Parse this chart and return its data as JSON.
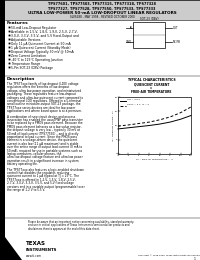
{
  "title_line1": "TPS77601, TPS77503, TPS77315, TPS77318, TPS77328",
  "title_line2": "TPS77327, TPS77528, TPS77550, TPS77533, TPS77333",
  "title_line3": "ULTRA LOW-POWER 50-mA LOW-DROPOUT LINEAR REGULATORS",
  "subtitle": "SLVS188 - MAY 1998 - REVISED OCTOBER 2000",
  "features": [
    "50-mA Low-Dropout Regulator",
    "Available in 1.5-V, 1.8-V, 1.9-V, 2.5-V, 2.7-V,",
    "3.0-V, 3.3-V, 3.5-V, and 5-V Fixed-Output and",
    "Adjustable Versions",
    "Only 11 μA Quiescent Current at 50-mA",
    "1 μA Quiescent Current (Standby Mode)",
    "Dropout Voltage Typically 30 mV @ 50mA",
    "Zero Current Limitation",
    "–40°C to 125°C Operating Junction",
    "Temperature Range",
    "5-Pin SOT-23 (DBV) Package"
  ],
  "pkg_label": "SOT-23 (DBV)",
  "desc1": "The TPS77xxx family of low-dropout (LDO) voltage regulators offers the benefits of low-dropout voltage, ultra low-power operation, and miniaturized packaging. These regulators feature low-dropout voltages and ultra-low quiescent current compared to conventional LDO regulators. Offered in a 5-terminal small outline miniature-output SOT-23 package, the TPS77xxx series devices are ideal for low-power applications and where board space is at a premium.",
  "desc2": "A combination of new circuit design and process innovation has enabled the usual PNP pass transistor to be replaced by a PMOS pass element. Because the PMOS pass element behaves as a low-value resistor, the dropout voltage is very low – typically 30 mV at 50 mA of load current (TPS77550) – and is directly proportional to load current. Since the PMOS pass element is a voltage-driven device, the quiescent current is also low (11 μA maximum) and is stable over the entire range of output load current (0 mA to 50 mA), required for use in portable systems such as laptop computers, cellular phones, the ultra-low-dropout voltage feature and ultra low power operation result in a significant increase in system battery operating life.",
  "desc3": "The TPS77xxx also features a logic-enabled shutdown control that disables the regulator, reducing quiescent current to 1 μA typical at TJ = 25°C. The TPS77xxx is offered in 1.2-V, 1.5-V, 1.8-V, 2.5-V, 2.7-V, 3.0-V, 3.3-V, 3.5-V, and 5-V fixed-voltage versions and in a variable-output (programmable) over the range of 1.2 V to 5.5 V.",
  "warning_text": "Please be aware that an important notice concerning availability, standard warranty, and use in critical applications of Texas Instruments semiconductor products and disclaimers thereto appears at the end of this data sheet.",
  "copyright": "Copyright © 1998-2000, Texas Instruments Incorporated",
  "graph_title1": "TYPICAL CHARACTERISTICS",
  "graph_title2": "QUIESCENT CURRENT",
  "graph_title3": "vs",
  "graph_title4": "FREE-AIR TEMPERATURE",
  "graph_legend1": "VIN = 3.5 V",
  "graph_legend2": "VOUT = 3 V, IO = 0",
  "graph_ylabel": "IQ – Quiescent Current – μA",
  "graph_xlabel": "TA – Free-Air Temperature – °C",
  "graph_y_ticks": [
    0,
    5,
    10,
    15,
    20
  ],
  "graph_x_ticks": [
    -50,
    -25,
    0,
    25,
    50,
    75,
    100,
    125
  ],
  "graph_ylim": [
    0,
    20
  ],
  "graph_xlim": [
    -50,
    125
  ],
  "temps": [
    -50,
    -25,
    0,
    25,
    50,
    75,
    100,
    125
  ],
  "iq1": [
    8.8,
    9.2,
    9.6,
    10.0,
    10.5,
    11.2,
    12.2,
    13.5
  ],
  "iq2": [
    9.8,
    10.2,
    10.7,
    11.2,
    12.0,
    13.0,
    14.5,
    16.5
  ],
  "bg_color": "#ffffff",
  "header_bg": "#cccccc",
  "text_color": "#000000"
}
